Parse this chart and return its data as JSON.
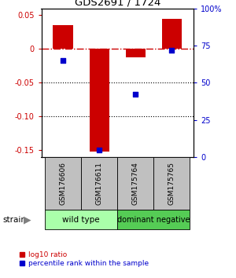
{
  "title": "GDS2691 / 1724",
  "samples": [
    "GSM176606",
    "GSM176611",
    "GSM175764",
    "GSM175765"
  ],
  "log10_ratio": [
    0.035,
    -0.152,
    -0.012,
    0.044
  ],
  "percentile_rank": [
    65,
    5,
    42,
    72
  ],
  "bar_color": "#cc0000",
  "dot_color": "#0000cc",
  "ylim_left": [
    -0.16,
    0.06
  ],
  "ylim_right": [
    0,
    100
  ],
  "yticks_left": [
    0.05,
    0.0,
    -0.05,
    -0.1,
    -0.15
  ],
  "ytick_labels_left": [
    "0.05",
    "0",
    "-0.05",
    "-0.10",
    "-0.15"
  ],
  "yticks_right_vals": [
    100,
    75,
    50,
    25,
    0
  ],
  "yticks_right_labels": [
    "100%",
    "75",
    "50",
    "25",
    "0"
  ],
  "group1_label": "wild type",
  "group1_color": "#aaffaa",
  "group2_label": "dominant negative",
  "group2_color": "#55cc55",
  "hline_zero_color": "#cc0000",
  "hline_dotted_color": "black",
  "hline_dotted_vals": [
    -0.05,
    -0.1
  ],
  "legend_red_label": "log10 ratio",
  "legend_blue_label": "percentile rank within the sample",
  "bar_width": 0.55,
  "sample_box_color": "#c0c0c0",
  "bg_color": "white"
}
